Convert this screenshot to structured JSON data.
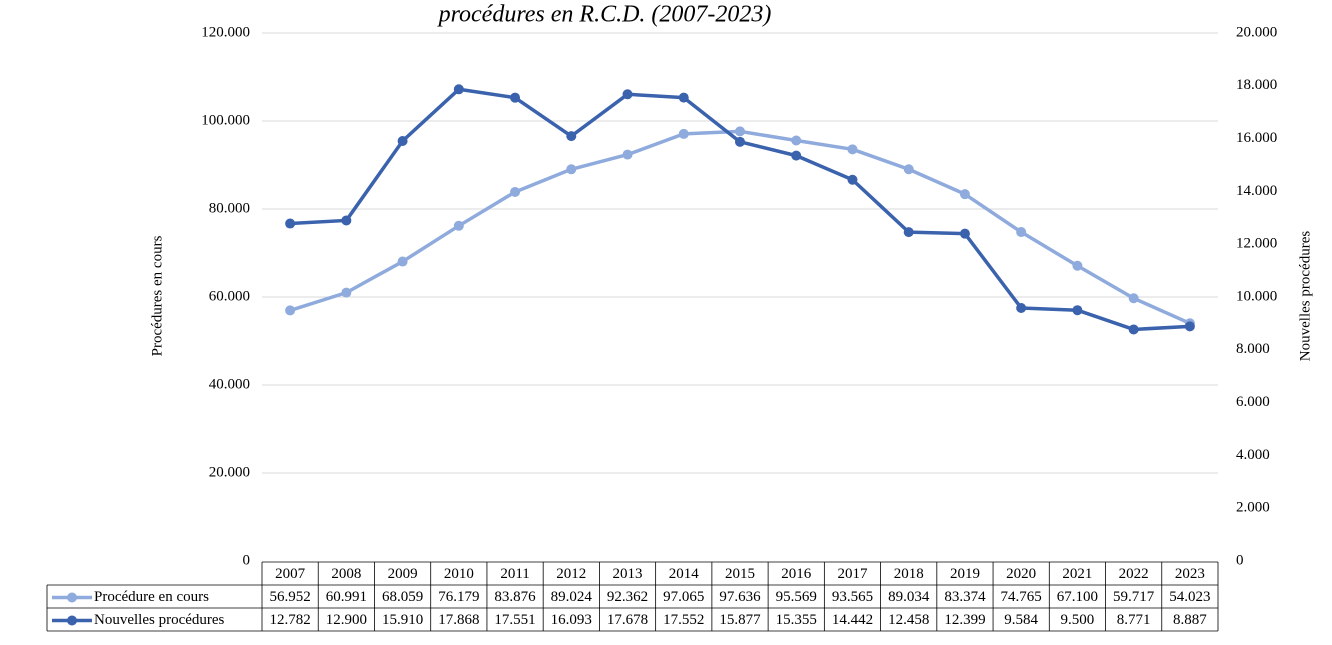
{
  "chart_data": {
    "type": "line",
    "title": "procédures en R.C.D. (2007-2023)",
    "y_label": "Procédures en cours",
    "y2_label": "Nouvelles procédures",
    "categories": [
      "2007",
      "2008",
      "2009",
      "2010",
      "2011",
      "2012",
      "2013",
      "2014",
      "2015",
      "2016",
      "2017",
      "2018",
      "2019",
      "2020",
      "2021",
      "2022",
      "2023"
    ],
    "series": [
      {
        "name": "Procédure en cours",
        "color": "#8faadc",
        "values": [
          56952,
          60991,
          68059,
          76179,
          83876,
          89024,
          92362,
          97065,
          97636,
          95569,
          93565,
          89034,
          83374,
          74765,
          67100,
          59717,
          54023
        ],
        "value_labels": [
          "56.952",
          "60.991",
          "68.059",
          "76.179",
          "83.876",
          "89.024",
          "92.362",
          "97.065",
          "97.636",
          "95.569",
          "93.565",
          "89.034",
          "83.374",
          "74.765",
          "67.100",
          "59.717",
          "54.023"
        ]
      },
      {
        "name": "Nouvelles procédures",
        "color": "#3a62ad",
        "axis": "y2",
        "values": [
          12782,
          12900,
          15910,
          17868,
          17551,
          16093,
          17678,
          17552,
          15877,
          15355,
          14442,
          12458,
          12399,
          9584,
          9500,
          8771,
          8887
        ],
        "value_labels": [
          "12.782",
          "12.900",
          "15.910",
          "17.868",
          "17.551",
          "16.093",
          "17.678",
          "17.552",
          "15.877",
          "15.355",
          "14.442",
          "12.458",
          "12.399",
          "9.584",
          "9.500",
          "8.771",
          "8.887"
        ]
      }
    ],
    "ylim": [
      0,
      120000
    ],
    "yticks": [
      0,
      {
        "value": 20000,
        "label": "20.000"
      },
      {
        "value": 40000,
        "label": "40.000"
      },
      {
        "value": 60000,
        "label": "60.000"
      },
      {
        "value": 80000,
        "label": "80.000"
      },
      {
        "value": 100000,
        "label": "100.000"
      },
      {
        "value": 120000,
        "label": "120.000"
      }
    ],
    "y2lim": [
      0,
      20000
    ],
    "y2ticks": [
      0,
      {
        "value": 2000,
        "label": "2.000"
      },
      {
        "value": 4000,
        "label": "4.000"
      },
      {
        "value": 6000,
        "label": "6.000"
      },
      {
        "value": 8000,
        "label": "8.000"
      },
      {
        "value": 10000,
        "label": "10.000"
      },
      {
        "value": 12000,
        "label": "12.000"
      },
      {
        "value": 14000,
        "label": "14.000"
      },
      {
        "value": 16000,
        "label": "16.000"
      },
      {
        "value": 18000,
        "label": "18.000"
      },
      {
        "value": 20000,
        "label": "20.000"
      }
    ],
    "grid": true
  }
}
